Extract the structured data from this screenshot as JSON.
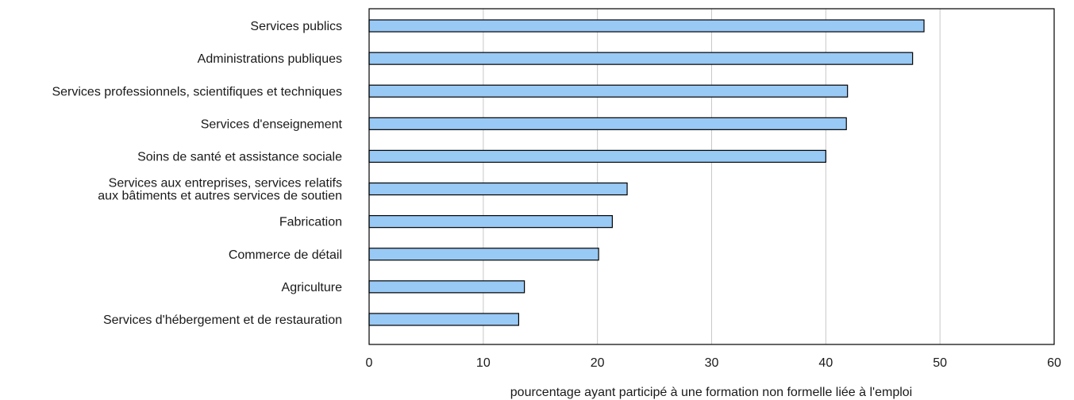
{
  "chart_data": {
    "type": "bar",
    "orientation": "horizontal",
    "categories": [
      "Services publics",
      "Administrations publiques",
      "Services professionnels, scientifiques et techniques",
      "Services d'enseignement",
      "Soins de santé et assistance sociale",
      "Services aux entreprises, services relatifs aux bâtiments et autres services de soutien",
      "Fabrication",
      "Commerce de détail",
      "Agriculture",
      "Services d'hébergement et de restauration"
    ],
    "category_label_lines": [
      [
        "Services publics"
      ],
      [
        "Administrations publiques"
      ],
      [
        "Services professionnels, scientifiques et techniques"
      ],
      [
        "Services d'enseignement"
      ],
      [
        "Soins de santé et assistance sociale"
      ],
      [
        "Services aux entreprises, services relatifs",
        "aux bâtiments et autres services de soutien"
      ],
      [
        "Fabrication"
      ],
      [
        "Commerce de détail"
      ],
      [
        "Agriculture"
      ],
      [
        "Services d'hébergement et de restauration"
      ]
    ],
    "values": [
      48.6,
      47.6,
      41.9,
      41.8,
      40.0,
      22.6,
      21.3,
      20.1,
      13.6,
      13.1
    ],
    "title": "",
    "xlabel": "pourcentage ayant participé à une formation non formelle liée à l'emploi",
    "ylabel": "",
    "xlim": [
      0,
      60
    ],
    "xticks": [
      0,
      10,
      20,
      30,
      40,
      50,
      60
    ],
    "xtick_labels": [
      "0",
      "10",
      "20",
      "30",
      "40",
      "50",
      "60"
    ],
    "grid": "vertical",
    "legend": "none",
    "bar_color": "#99c9f5",
    "bar_edge_color": "#000000",
    "grid_color": "#c8c8c8"
  }
}
